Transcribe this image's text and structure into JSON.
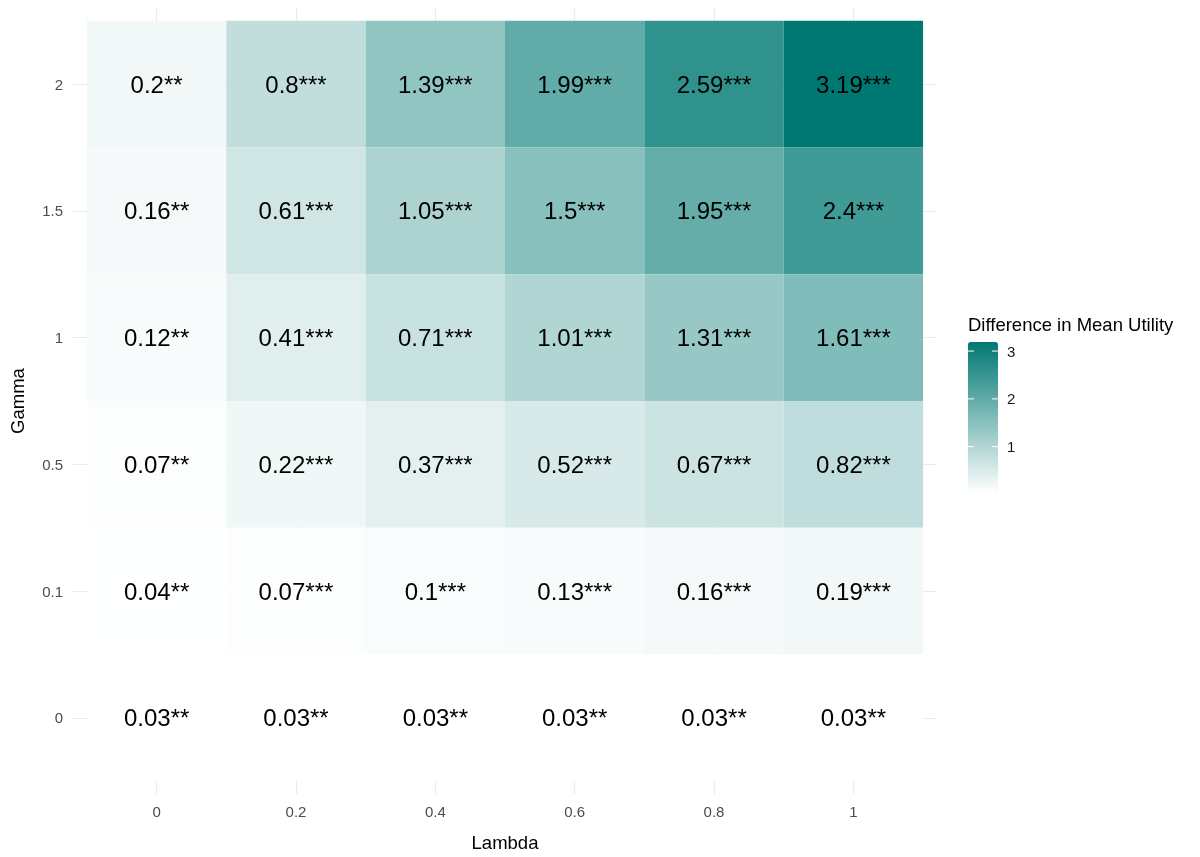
{
  "chart_data": {
    "type": "heatmap",
    "xlabel": "Lambda",
    "ylabel": "Gamma",
    "clabel": "Difference in Mean Utility",
    "categories": [
      "0",
      "0.2",
      "0.4",
      "0.6",
      "0.8",
      "1"
    ],
    "y_categories": [
      "2",
      "1.5",
      "1",
      "0.5",
      "0.1",
      "0"
    ],
    "cells": [
      [
        0.2,
        0.8,
        1.39,
        1.99,
        2.59,
        3.19
      ],
      [
        0.16,
        0.61,
        1.05,
        1.5,
        1.95,
        2.4
      ],
      [
        0.12,
        0.41,
        0.71,
        1.01,
        1.31,
        1.61
      ],
      [
        0.07,
        0.22,
        0.37,
        0.52,
        0.67,
        0.82
      ],
      [
        0.04,
        0.07,
        0.1,
        0.13,
        0.16,
        0.19
      ],
      [
        0.03,
        0.03,
        0.03,
        0.03,
        0.03,
        0.03
      ]
    ],
    "cell_labels": [
      [
        "0.2**",
        "0.8***",
        "1.39***",
        "1.99***",
        "2.59***",
        "3.19***"
      ],
      [
        "0.16**",
        "0.61***",
        "1.05***",
        "1.5***",
        "1.95***",
        "2.4***"
      ],
      [
        "0.12**",
        "0.41***",
        "0.71***",
        "1.01***",
        "1.31***",
        "1.61***"
      ],
      [
        "0.07**",
        "0.22***",
        "0.37***",
        "0.52***",
        "0.67***",
        "0.82***"
      ],
      [
        "0.04**",
        "0.07***",
        "0.1***",
        "0.13***",
        "0.16***",
        "0.19***"
      ],
      [
        "0.03**",
        "0.03**",
        "0.03**",
        "0.03**",
        "0.03**",
        "0.03**"
      ]
    ],
    "clim": [
      0.03,
      3.19
    ],
    "cticks": [
      1,
      2,
      3
    ],
    "color": "#007872",
    "grid": true
  }
}
